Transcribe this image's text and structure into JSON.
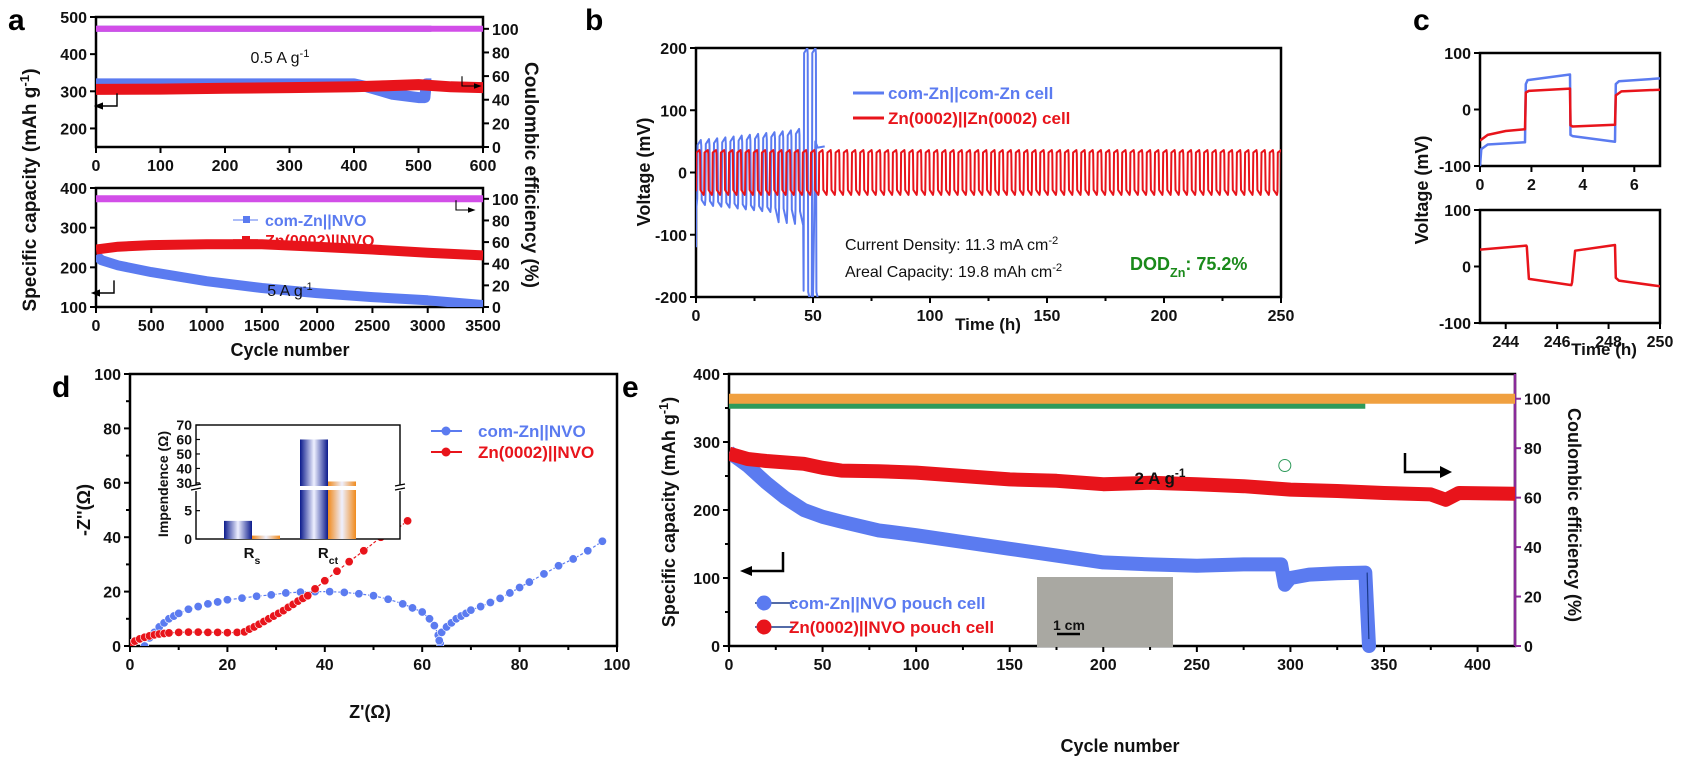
{
  "figure": {
    "panels": [
      "a",
      "b",
      "c",
      "d",
      "e"
    ]
  },
  "chart_data": [
    {
      "id": "a_top",
      "panel": "a",
      "type": "line",
      "annotation": "0.5 A g-1",
      "xlabel": "",
      "ylabel": "Specific capacity (mAh g-1)",
      "y2label": "Coulombic efficiency (%)",
      "xlim": [
        0,
        600
      ],
      "ylim": [
        150,
        500
      ],
      "y2lim": [
        0,
        110
      ],
      "xticks": [
        0,
        100,
        200,
        300,
        400,
        500,
        600
      ],
      "yticks": [
        200,
        300,
        400,
        500
      ],
      "y2ticks": [
        0,
        20,
        40,
        60,
        80,
        100
      ],
      "series": [
        {
          "name": "com-Zn||NVO capacity",
          "color": "#5b7bf0",
          "x": [
            0,
            100,
            200,
            300,
            400,
            420,
            460,
            500,
            510,
            512,
            520
          ],
          "y": [
            320,
            320,
            320,
            320,
            320,
            312,
            292,
            283,
            283,
            320,
            320
          ]
        },
        {
          "name": "Zn(0002)||NVO capacity",
          "color": "#e8141b",
          "x": [
            0,
            100,
            200,
            300,
            400,
            450,
            500,
            550,
            600
          ],
          "y": [
            305,
            306,
            308,
            310,
            312,
            315,
            318,
            312,
            310
          ]
        },
        {
          "name": "com-Zn||NVO CE",
          "color": "#5a3fd0",
          "axis": "y2",
          "x": [
            0,
            520
          ],
          "y": [
            100,
            100
          ]
        },
        {
          "name": "Zn(0002)||NVO CE",
          "color": "#d24ee8",
          "axis": "y2",
          "x": [
            0,
            600
          ],
          "y": [
            100,
            100
          ]
        }
      ]
    },
    {
      "id": "a_bottom",
      "panel": "a",
      "type": "line",
      "annotation": "5 A g-1",
      "xlabel": "Cycle number",
      "ylabel": "Specific capacity (mAh g-1)",
      "y2label": "Coulombic efficiency (%)",
      "xlim": [
        0,
        3500
      ],
      "ylim": [
        100,
        400
      ],
      "y2lim": [
        0,
        110
      ],
      "xticks": [
        0,
        500,
        1000,
        1500,
        2000,
        2500,
        3000,
        3500
      ],
      "yticks": [
        100,
        200,
        300,
        400
      ],
      "y2ticks": [
        0,
        20,
        40,
        60,
        80,
        100
      ],
      "legend": [
        "com-Zn||NVO",
        "Zn(0002)||NVO"
      ],
      "series": [
        {
          "name": "com-Zn||NVO",
          "color": "#5b7bf0",
          "x": [
            0,
            50,
            200,
            500,
            1000,
            1500,
            2000,
            2500,
            3000,
            3500
          ],
          "y": [
            230,
            218,
            205,
            188,
            165,
            148,
            135,
            125,
            117,
            105
          ]
        },
        {
          "name": "Zn(0002)||NVO",
          "color": "#e8141b",
          "x": [
            0,
            200,
            500,
            1000,
            1500,
            2000,
            2500,
            3000,
            3500
          ],
          "y": [
            245,
            252,
            256,
            258,
            258,
            252,
            245,
            237,
            230
          ]
        },
        {
          "name": "CE",
          "color": "#d24ee8",
          "axis": "y2",
          "x": [
            0,
            3500
          ],
          "y": [
            100,
            100
          ]
        }
      ]
    },
    {
      "id": "b",
      "panel": "b",
      "type": "line",
      "xlabel": "Time (h)",
      "ylabel": "Voltage (mV)",
      "xlim": [
        0,
        250
      ],
      "ylim": [
        -200,
        200
      ],
      "xticks": [
        0,
        50,
        100,
        150,
        200,
        250
      ],
      "yticks": [
        -200,
        -100,
        0,
        100,
        200
      ],
      "legend": [
        "com-Zn||com-Zn cell",
        "Zn(0002)||Zn(0002) cell"
      ],
      "annotations": [
        "Current Density: 11.3 mA cm-2",
        "Areal Capacity: 19.8 mAh cm-2",
        "DODZn: 75.2%"
      ],
      "series": [
        {
          "name": "com-Zn||com-Zn cell",
          "color": "#5b7bf0",
          "period_h": 3.5,
          "amplitude_mV": [
            55,
            200
          ],
          "fails_at_h": 51
        },
        {
          "name": "Zn(0002)||Zn(0002) cell",
          "color": "#e8141b",
          "period_h": 3.5,
          "amplitude_mV": [
            35,
            35
          ],
          "end_h": 250
        }
      ]
    },
    {
      "id": "c_top",
      "panel": "c",
      "type": "line",
      "xlim": [
        0,
        7
      ],
      "ylim": [
        -100,
        100
      ],
      "xticks": [
        0,
        2,
        4,
        6
      ],
      "yticks": [
        -100,
        0,
        100
      ],
      "ylabel": "Voltage (mV)",
      "series": [
        {
          "name": "com-Zn||com-Zn cell",
          "color": "#5b7bf0",
          "x": [
            0,
            0.05,
            0.3,
            1.75,
            1.78,
            1.85,
            3.5,
            3.52,
            3.6,
            5.25,
            5.28,
            5.4,
            7
          ],
          "y": [
            -100,
            -70,
            -62,
            -58,
            45,
            52,
            62,
            -45,
            -47,
            -57,
            45,
            50,
            55
          ]
        },
        {
          "name": "Zn(0002)||Zn(0002) cell",
          "color": "#e8141b",
          "x": [
            0,
            0.3,
            1,
            1.75,
            1.78,
            1.9,
            3.5,
            3.52,
            3.6,
            5.25,
            5.28,
            5.5,
            7
          ],
          "y": [
            -55,
            -45,
            -38,
            -35,
            30,
            33,
            37,
            -28,
            -30,
            -27,
            25,
            32,
            35
          ]
        }
      ]
    },
    {
      "id": "c_bottom",
      "panel": "c",
      "type": "line",
      "xlabel": "Time (h)",
      "xlim": [
        243,
        250
      ],
      "ylim": [
        -100,
        100
      ],
      "xticks": [
        244,
        246,
        248,
        250
      ],
      "yticks": [
        -100,
        0,
        100
      ],
      "series": [
        {
          "name": "Zn(0002)||Zn(0002) cell",
          "color": "#e8141b",
          "x": [
            243,
            244.8,
            244.82,
            244.9,
            246.55,
            246.58,
            246.7,
            248.25,
            248.28,
            248.4,
            250
          ],
          "y": [
            30,
            37,
            35,
            -22,
            -33,
            -28,
            28,
            38,
            -20,
            -25,
            -35
          ]
        }
      ]
    },
    {
      "id": "d",
      "panel": "d",
      "type": "scatter",
      "xlabel": "Z'(Ω)",
      "ylabel": "-Z''(Ω)",
      "xlim": [
        0,
        100
      ],
      "ylim": [
        0,
        100
      ],
      "xticks": [
        0,
        20,
        40,
        60,
        80,
        100
      ],
      "yticks": [
        0,
        20,
        40,
        60,
        80,
        100
      ],
      "legend": [
        "com-Zn||NVO",
        "Zn(0002)||NVO"
      ],
      "series": [
        {
          "name": "com-Zn||NVO",
          "color": "#5b7bf0",
          "x": [
            3,
            4,
            5,
            6,
            7,
            8,
            9,
            10,
            12,
            14,
            16,
            18,
            20,
            23,
            26,
            29,
            32,
            35,
            38,
            41,
            44,
            47,
            50,
            53,
            56,
            58,
            60,
            61.5,
            62.5,
            63.3,
            63.7,
            63.5,
            64,
            65,
            66,
            67,
            68,
            69,
            70,
            72,
            74,
            76,
            78,
            80,
            82,
            85,
            88,
            91,
            94,
            97
          ],
          "y": [
            0,
            3,
            5,
            7,
            8.5,
            10,
            11,
            12,
            13.5,
            14.5,
            15.5,
            16.2,
            17,
            17.6,
            18.3,
            18.8,
            19.5,
            19.8,
            20,
            20,
            19.7,
            19.2,
            18.5,
            17.2,
            15.5,
            14,
            12.5,
            10,
            7.5,
            4,
            1,
            2,
            5,
            7,
            8.5,
            10,
            11,
            12,
            13.2,
            14.5,
            16,
            17.5,
            19.5,
            21.5,
            23.5,
            26.5,
            29.5,
            32,
            35,
            38.5
          ]
        },
        {
          "name": "Zn(0002)||NVO",
          "color": "#e8141b",
          "x": [
            0,
            0.5,
            1,
            2,
            3,
            4,
            5,
            6,
            7,
            8,
            10,
            12,
            14,
            16,
            18,
            20,
            22,
            23.5,
            24.5,
            25.5,
            26.5,
            27.5,
            28.5,
            29.5,
            30.5,
            31.5,
            32.5,
            33.5,
            34.5,
            35.5,
            36.5,
            38,
            40,
            42.5,
            45,
            48,
            51.5,
            54,
            57
          ],
          "y": [
            0,
            1,
            1.8,
            2.6,
            3.2,
            3.7,
            4.1,
            4.4,
            4.6,
            4.8,
            5,
            5.1,
            5.1,
            5,
            5,
            4.9,
            5,
            5.2,
            6.2,
            7,
            8,
            9,
            10,
            11,
            12,
            13,
            14.2,
            15.3,
            16.5,
            17.5,
            18.5,
            21,
            24,
            27.5,
            31,
            35,
            40,
            42,
            46
          ]
        }
      ],
      "inset": {
        "type": "bar",
        "ylabel": "Impendence (Ω)",
        "categories": [
          "Rs",
          "Rct"
        ],
        "yticks": [
          0,
          5,
          30,
          40,
          50,
          60,
          70
        ],
        "axis_break": true,
        "series": [
          {
            "name": "com-Zn||NVO",
            "color": "#0b1a8c",
            "values": [
              3.2,
              60
            ]
          },
          {
            "name": "Zn(0002)||NVO",
            "color": "#f08a1c",
            "values": [
              0.6,
              31
            ]
          }
        ]
      }
    },
    {
      "id": "e",
      "panel": "e",
      "type": "scatter",
      "annotation": "2 A g-1",
      "xlabel": "Cycle number",
      "ylabel": "Specific capacity (mAh g-1)",
      "y2label": "Coulombic efficiency (%)",
      "xlim": [
        0,
        420
      ],
      "ylim": [
        0,
        400
      ],
      "y2lim": [
        0,
        110
      ],
      "xticks": [
        0,
        50,
        100,
        150,
        200,
        250,
        300,
        350,
        400
      ],
      "yticks": [
        0,
        100,
        200,
        300,
        400
      ],
      "y2ticks": [
        0,
        20,
        40,
        60,
        80,
        100
      ],
      "legend": [
        "com-Zn||NVO pouch cell",
        "Zn(0002)||NVO pouch cell"
      ],
      "inset_photo_scale": "1 cm",
      "series": [
        {
          "name": "com-Zn||NVO pouch cell",
          "color": "#5b7bf0",
          "x": [
            0,
            10,
            20,
            30,
            40,
            50,
            60,
            80,
            100,
            125,
            150,
            175,
            200,
            225,
            250,
            275,
            295,
            297,
            300,
            310,
            325,
            340,
            342
          ],
          "y": [
            285,
            265,
            240,
            218,
            200,
            190,
            183,
            170,
            163,
            153,
            143,
            133,
            123,
            120,
            118,
            120,
            120,
            90,
            100,
            105,
            107,
            108,
            0
          ]
        },
        {
          "name": "Zn(0002)||NVO pouch cell",
          "color": "#e8141b",
          "x": [
            0,
            10,
            20,
            40,
            50,
            60,
            80,
            100,
            125,
            150,
            175,
            200,
            225,
            250,
            275,
            300,
            325,
            350,
            375,
            383,
            390,
            420
          ],
          "y": [
            283,
            275,
            272,
            268,
            262,
            258,
            257,
            255,
            250,
            245,
            243,
            238,
            240,
            238,
            235,
            230,
            228,
            225,
            223,
            215,
            225,
            224
          ]
        },
        {
          "name": "com-Zn||NVO CE",
          "color": "#2e9a5a",
          "axis": "y2",
          "x": [
            0,
            340
          ],
          "y": [
            98,
            98
          ]
        },
        {
          "name": "Zn(0002)||NVO CE",
          "color": "#f0a040",
          "axis": "y2",
          "x": [
            0,
            420
          ],
          "y": [
            100,
            100
          ]
        }
      ]
    }
  ]
}
